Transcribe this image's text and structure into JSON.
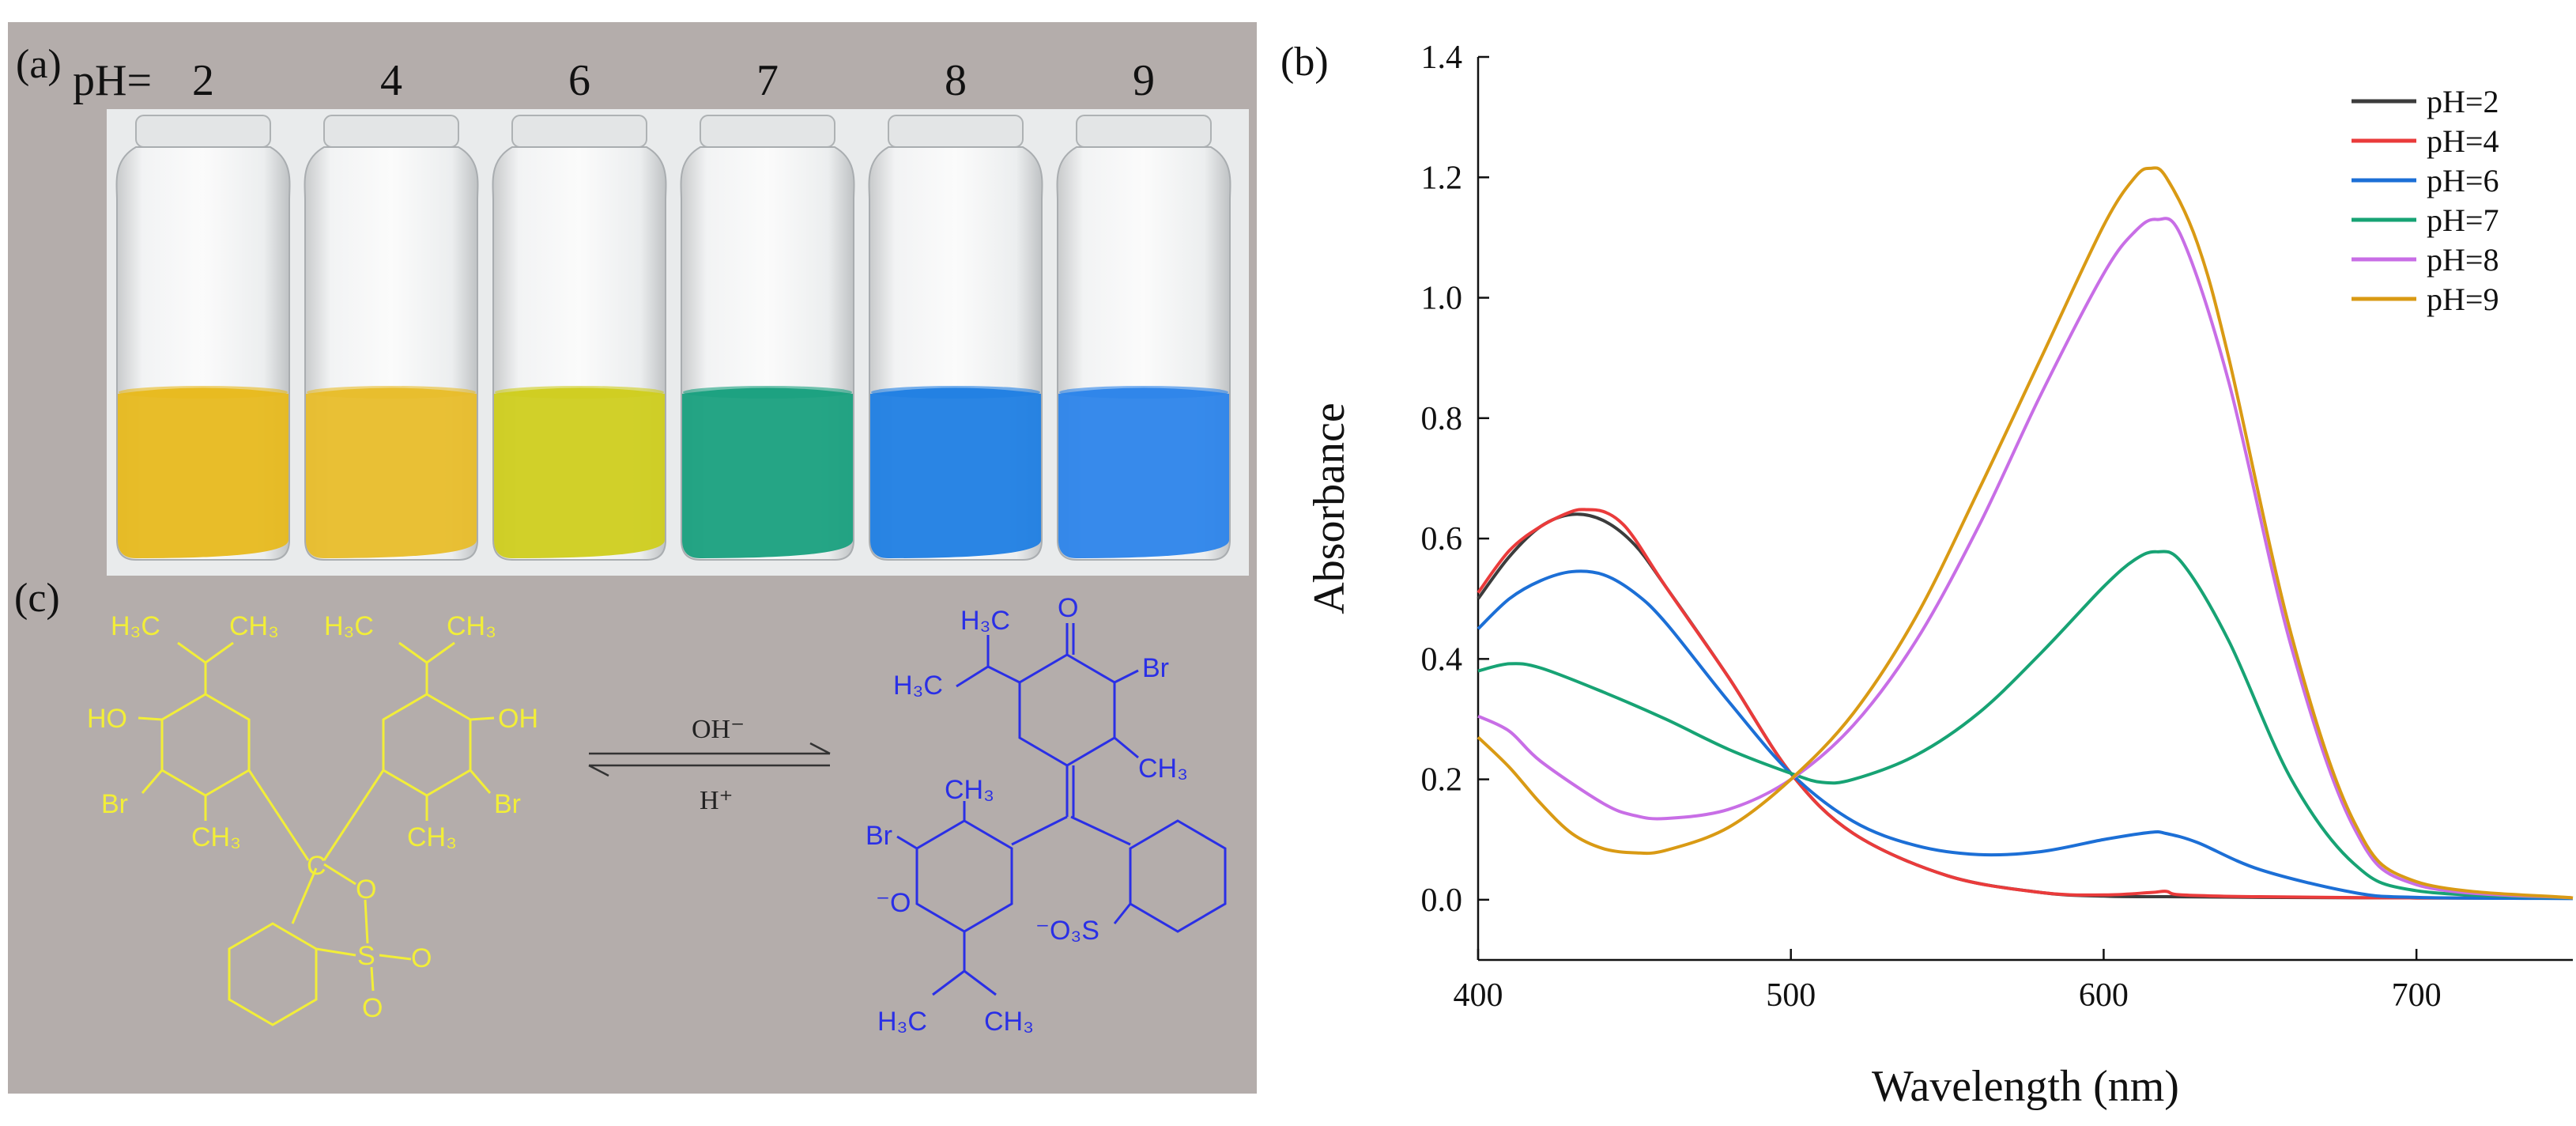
{
  "panel_a": {
    "label": "(a)",
    "ph_prefix": "pH=",
    "ph_values": [
      "2",
      "4",
      "6",
      "7",
      "8",
      "9"
    ],
    "vial_colors": [
      "#e7b91d",
      "#e8bd2a",
      "#cfcd1e",
      "#19a07e",
      "#1f7ee3",
      "#2c84ea"
    ]
  },
  "panel_c": {
    "label": "(c)",
    "acid_form_color": "#f2ee38",
    "base_form_color": "#2a2fe6",
    "arrow_top_label": "OH⁻",
    "arrow_bottom_label": "H⁺",
    "acid_labels": {
      "h3c_left": "H₃C",
      "ch3_left": "CH₃",
      "h3c_right": "H₃C",
      "ch3_right": "CH₃",
      "ho": "HO",
      "oh": "OH",
      "br_left": "Br",
      "br_right": "Br",
      "ch3_ring_left": "CH₃",
      "ch3_ring_right": "CH₃",
      "c_center": "C",
      "o_ring": "O",
      "s": "S",
      "o_s1": "O",
      "o_s2": "O"
    },
    "base_labels": {
      "o_top": "O",
      "br_top": "Br",
      "h3c_a": "H₃C",
      "h3c_b": "H₃C",
      "ch3_top": "CH₃",
      "ch3_mid": "CH₃",
      "br_mid": "Br",
      "o_minus": "⁻O",
      "o3s": "⁻O₃S",
      "h3c_bottom": "H₃C",
      "ch3_bottom": "CH₃"
    }
  },
  "panel_b": {
    "label": "(b)"
  },
  "chart_data": {
    "type": "line",
    "xlabel": "Wavelength (nm)",
    "ylabel": "Absorbance",
    "xlim": [
      400,
      750
    ],
    "ylim": [
      -0.1,
      1.4
    ],
    "xticks": [
      400,
      500,
      600,
      700
    ],
    "yticks": [
      0.0,
      0.2,
      0.4,
      0.6,
      0.8,
      1.0,
      1.2,
      1.4
    ],
    "ytick_labels": [
      "0.0",
      "0.2",
      "0.4",
      "0.6",
      "0.8",
      "1.0",
      "1.2",
      "1.4"
    ],
    "legend_position": "top-right",
    "series": [
      {
        "name": "pH=2",
        "color": "#3c3c3c",
        "x": [
          400,
          410,
          420,
          430,
          440,
          450,
          460,
          480,
          500,
          520,
          550,
          580,
          600,
          620,
          650,
          700,
          750
        ],
        "y": [
          0.5,
          0.57,
          0.62,
          0.64,
          0.63,
          0.59,
          0.52,
          0.37,
          0.21,
          0.11,
          0.04,
          0.012,
          0.006,
          0.005,
          0.004,
          0.003,
          0.003
        ]
      },
      {
        "name": "pH=4",
        "color": "#ea3b3b",
        "x": [
          400,
          410,
          420,
          430,
          435,
          440,
          445,
          450,
          460,
          480,
          500,
          520,
          550,
          580,
          600,
          615,
          620,
          625,
          650,
          700,
          750
        ],
        "y": [
          0.51,
          0.58,
          0.62,
          0.645,
          0.648,
          0.645,
          0.63,
          0.6,
          0.52,
          0.37,
          0.21,
          0.11,
          0.04,
          0.012,
          0.008,
          0.012,
          0.014,
          0.008,
          0.005,
          0.003,
          0.003
        ]
      },
      {
        "name": "pH=6",
        "color": "#1c6fd6",
        "x": [
          400,
          410,
          420,
          430,
          440,
          450,
          460,
          480,
          500,
          520,
          540,
          560,
          580,
          600,
          615,
          620,
          630,
          650,
          680,
          700,
          750
        ],
        "y": [
          0.45,
          0.5,
          0.53,
          0.545,
          0.54,
          0.51,
          0.46,
          0.33,
          0.21,
          0.13,
          0.09,
          0.075,
          0.08,
          0.1,
          0.112,
          0.11,
          0.095,
          0.05,
          0.012,
          0.004,
          0.002
        ]
      },
      {
        "name": "pH=7",
        "color": "#17a374",
        "x": [
          400,
          410,
          420,
          440,
          460,
          480,
          500,
          510,
          520,
          540,
          560,
          580,
          600,
          610,
          617,
          625,
          640,
          660,
          680,
          700,
          750
        ],
        "y": [
          0.38,
          0.392,
          0.385,
          0.345,
          0.3,
          0.25,
          0.21,
          0.195,
          0.2,
          0.24,
          0.31,
          0.41,
          0.52,
          0.565,
          0.578,
          0.56,
          0.43,
          0.2,
          0.06,
          0.015,
          0.003
        ]
      },
      {
        "name": "pH=8",
        "color": "#c86ee6",
        "x": [
          400,
          410,
          420,
          440,
          450,
          460,
          480,
          500,
          520,
          540,
          560,
          580,
          600,
          610,
          617,
          625,
          640,
          660,
          680,
          700,
          750
        ],
        "y": [
          0.305,
          0.28,
          0.23,
          0.16,
          0.14,
          0.135,
          0.15,
          0.2,
          0.29,
          0.43,
          0.62,
          0.84,
          1.04,
          1.11,
          1.13,
          1.1,
          0.86,
          0.42,
          0.12,
          0.025,
          0.003
        ]
      },
      {
        "name": "pH=9",
        "color": "#d99a14",
        "x": [
          400,
          410,
          420,
          430,
          440,
          450,
          460,
          480,
          500,
          520,
          540,
          560,
          580,
          600,
          610,
          615,
          620,
          630,
          640,
          660,
          680,
          700,
          750
        ],
        "y": [
          0.27,
          0.22,
          0.16,
          0.11,
          0.085,
          0.078,
          0.082,
          0.12,
          0.2,
          0.31,
          0.47,
          0.68,
          0.9,
          1.12,
          1.2,
          1.215,
          1.2,
          1.09,
          0.9,
          0.44,
          0.13,
          0.03,
          0.003
        ]
      }
    ]
  }
}
